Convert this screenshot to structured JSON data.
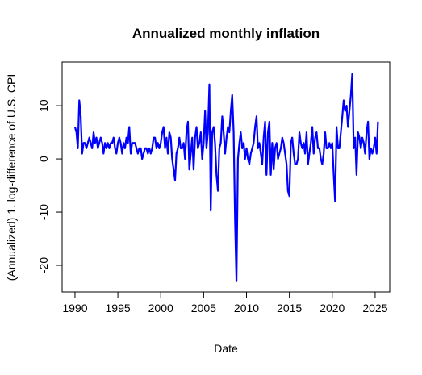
{
  "chart_data": {
    "type": "line",
    "title": "Annualized monthly inflation",
    "x_label": "Date",
    "y_label": "(Annualized) 1. log-difference of U.S. CPI",
    "x": [
      1990,
      1990.17,
      1990.33,
      1990.5,
      1990.67,
      1990.83,
      1991,
      1991.17,
      1991.33,
      1991.5,
      1991.67,
      1991.83,
      1992,
      1992.17,
      1992.33,
      1992.5,
      1992.67,
      1992.83,
      1993,
      1993.17,
      1993.33,
      1993.5,
      1993.67,
      1993.83,
      1994,
      1994.17,
      1994.33,
      1994.5,
      1994.67,
      1994.83,
      1995,
      1995.17,
      1995.33,
      1995.5,
      1995.67,
      1995.83,
      1996,
      1996.17,
      1996.33,
      1996.5,
      1996.67,
      1996.83,
      1997,
      1997.17,
      1997.33,
      1997.5,
      1997.67,
      1997.83,
      1998,
      1998.17,
      1998.33,
      1998.5,
      1998.67,
      1998.83,
      1999,
      1999.17,
      1999.33,
      1999.5,
      1999.67,
      1999.83,
      2000,
      2000.17,
      2000.33,
      2000.5,
      2000.67,
      2000.83,
      2001,
      2001.17,
      2001.33,
      2001.5,
      2001.67,
      2001.83,
      2002,
      2002.17,
      2002.33,
      2002.5,
      2002.67,
      2002.83,
      2003,
      2003.17,
      2003.33,
      2003.5,
      2003.67,
      2003.83,
      2004,
      2004.17,
      2004.33,
      2004.5,
      2004.67,
      2004.83,
      2005,
      2005.17,
      2005.33,
      2005.5,
      2005.67,
      2005.83,
      2006,
      2006.17,
      2006.33,
      2006.5,
      2006.67,
      2006.83,
      2007,
      2007.17,
      2007.33,
      2007.5,
      2007.67,
      2007.83,
      2008,
      2008.17,
      2008.33,
      2008.5,
      2008.67,
      2008.83,
      2009,
      2009.17,
      2009.33,
      2009.5,
      2009.67,
      2009.83,
      2010,
      2010.17,
      2010.33,
      2010.5,
      2010.67,
      2010.83,
      2011,
      2011.17,
      2011.33,
      2011.5,
      2011.67,
      2011.83,
      2012,
      2012.17,
      2012.33,
      2012.5,
      2012.67,
      2012.83,
      2013,
      2013.17,
      2013.33,
      2013.5,
      2013.67,
      2013.83,
      2014,
      2014.17,
      2014.33,
      2014.5,
      2014.67,
      2014.83,
      2015,
      2015.17,
      2015.33,
      2015.5,
      2015.67,
      2015.83,
      2016,
      2016.17,
      2016.33,
      2016.5,
      2016.67,
      2016.83,
      2017,
      2017.17,
      2017.33,
      2017.5,
      2017.67,
      2017.83,
      2018,
      2018.17,
      2018.33,
      2018.5,
      2018.67,
      2018.83,
      2019,
      2019.17,
      2019.33,
      2019.5,
      2019.67,
      2019.83,
      2020,
      2020.17,
      2020.33,
      2020.5,
      2020.67,
      2020.83,
      2021,
      2021.17,
      2021.33,
      2021.5,
      2021.67,
      2021.83,
      2022,
      2022.17,
      2022.33,
      2022.5,
      2022.67,
      2022.83,
      2023,
      2023.17,
      2023.33,
      2023.5,
      2023.67,
      2023.83,
      2024,
      2024.17,
      2024.33,
      2024.5,
      2024.67,
      2024.83,
      2025,
      2025.17,
      2025.33
    ],
    "series": [
      {
        "color": "#0000ff",
        "values": [
          6,
          5,
          2,
          11,
          8,
          1,
          3,
          3,
          2,
          3,
          4,
          3,
          2,
          5,
          3,
          4,
          2,
          3,
          4,
          3,
          1,
          3,
          2,
          3,
          2,
          3,
          3,
          4,
          2,
          1,
          3,
          4,
          3,
          1,
          3,
          2,
          4,
          3,
          6,
          1,
          3,
          3,
          3,
          2,
          1,
          2,
          2,
          0,
          1,
          2,
          2,
          1,
          2,
          1,
          2,
          4,
          4,
          2,
          3,
          2,
          3,
          5,
          6,
          2,
          4,
          1,
          5,
          4,
          0,
          -2,
          -4,
          1,
          2,
          4,
          2,
          2,
          3,
          0,
          5,
          7,
          -2,
          1,
          4,
          -2,
          4,
          6,
          2,
          3,
          5,
          0,
          3,
          9,
          2,
          5,
          14,
          -9.7,
          5,
          6,
          3,
          -3,
          -6,
          2,
          3,
          8,
          5,
          1,
          4,
          6,
          5,
          9,
          12,
          5,
          -12,
          -23,
          0,
          3,
          5,
          2,
          3,
          0,
          2,
          0,
          -1,
          1,
          2,
          3,
          6,
          8,
          2,
          3,
          1,
          -1,
          4,
          7,
          -3,
          5,
          7,
          -3,
          3,
          -2,
          2,
          3,
          0,
          1,
          2,
          4,
          3,
          1,
          -1,
          -6,
          -7,
          3,
          4,
          1,
          -1,
          -1,
          0,
          5,
          3,
          2,
          3,
          1,
          5,
          -1,
          1,
          3,
          6,
          1,
          4,
          5,
          2,
          2,
          0,
          -1,
          1,
          5,
          2,
          2,
          3,
          2,
          3,
          -3,
          -8,
          6,
          2,
          2,
          5,
          8,
          11,
          9,
          10,
          6,
          9,
          12,
          16,
          2,
          4,
          -3,
          5,
          4,
          2,
          4,
          3,
          1,
          5,
          7,
          0,
          2,
          1,
          2,
          4,
          1,
          7
        ]
      }
    ],
    "xlim": [
      1988.5,
      2026.7
    ],
    "ylim": [
      -25,
      18.2
    ],
    "xticks": [
      1990,
      1995,
      2000,
      2005,
      2010,
      2015,
      2020,
      2025
    ],
    "yticks": [
      -20,
      -10,
      0,
      10
    ]
  }
}
